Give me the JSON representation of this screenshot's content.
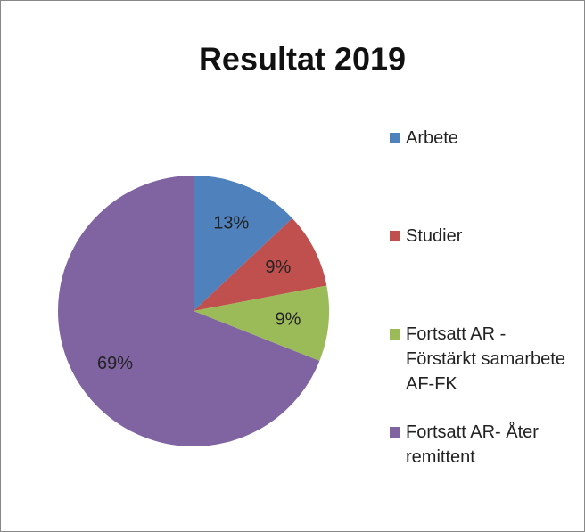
{
  "chart_data": {
    "type": "pie",
    "title": "Resultat 2019",
    "categories": [
      "Arbete",
      "Studier",
      "Fortsatt AR - Förstärkt samarbete AF-FK",
      "Fortsatt AR- Åter remittent"
    ],
    "values": [
      13,
      9,
      9,
      69
    ],
    "value_labels": [
      "13%",
      "9%",
      "9%",
      "69%"
    ],
    "colors": [
      "#4f81bd",
      "#c0504d",
      "#9bbb59",
      "#8064a2"
    ],
    "legend": "right"
  }
}
